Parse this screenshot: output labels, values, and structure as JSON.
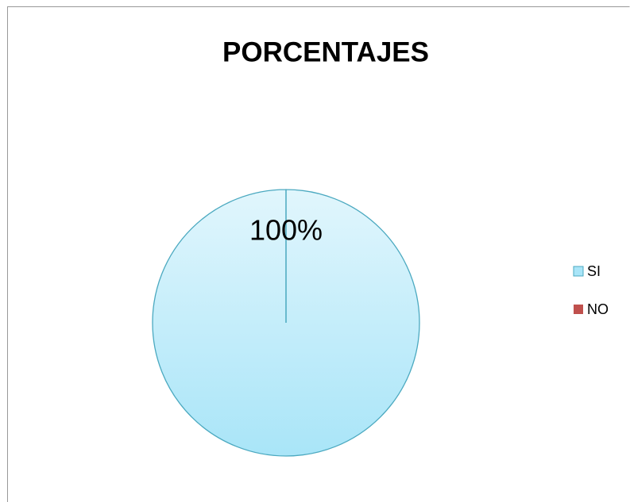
{
  "chart_data": {
    "type": "pie",
    "title": "PORCENTAJES",
    "categories": [
      "SI",
      "NO"
    ],
    "values": [
      100,
      0
    ],
    "value_labels": [
      "100%",
      null
    ],
    "colors": [
      "#a9e5f8",
      "#c0504d"
    ],
    "legend": "right"
  }
}
